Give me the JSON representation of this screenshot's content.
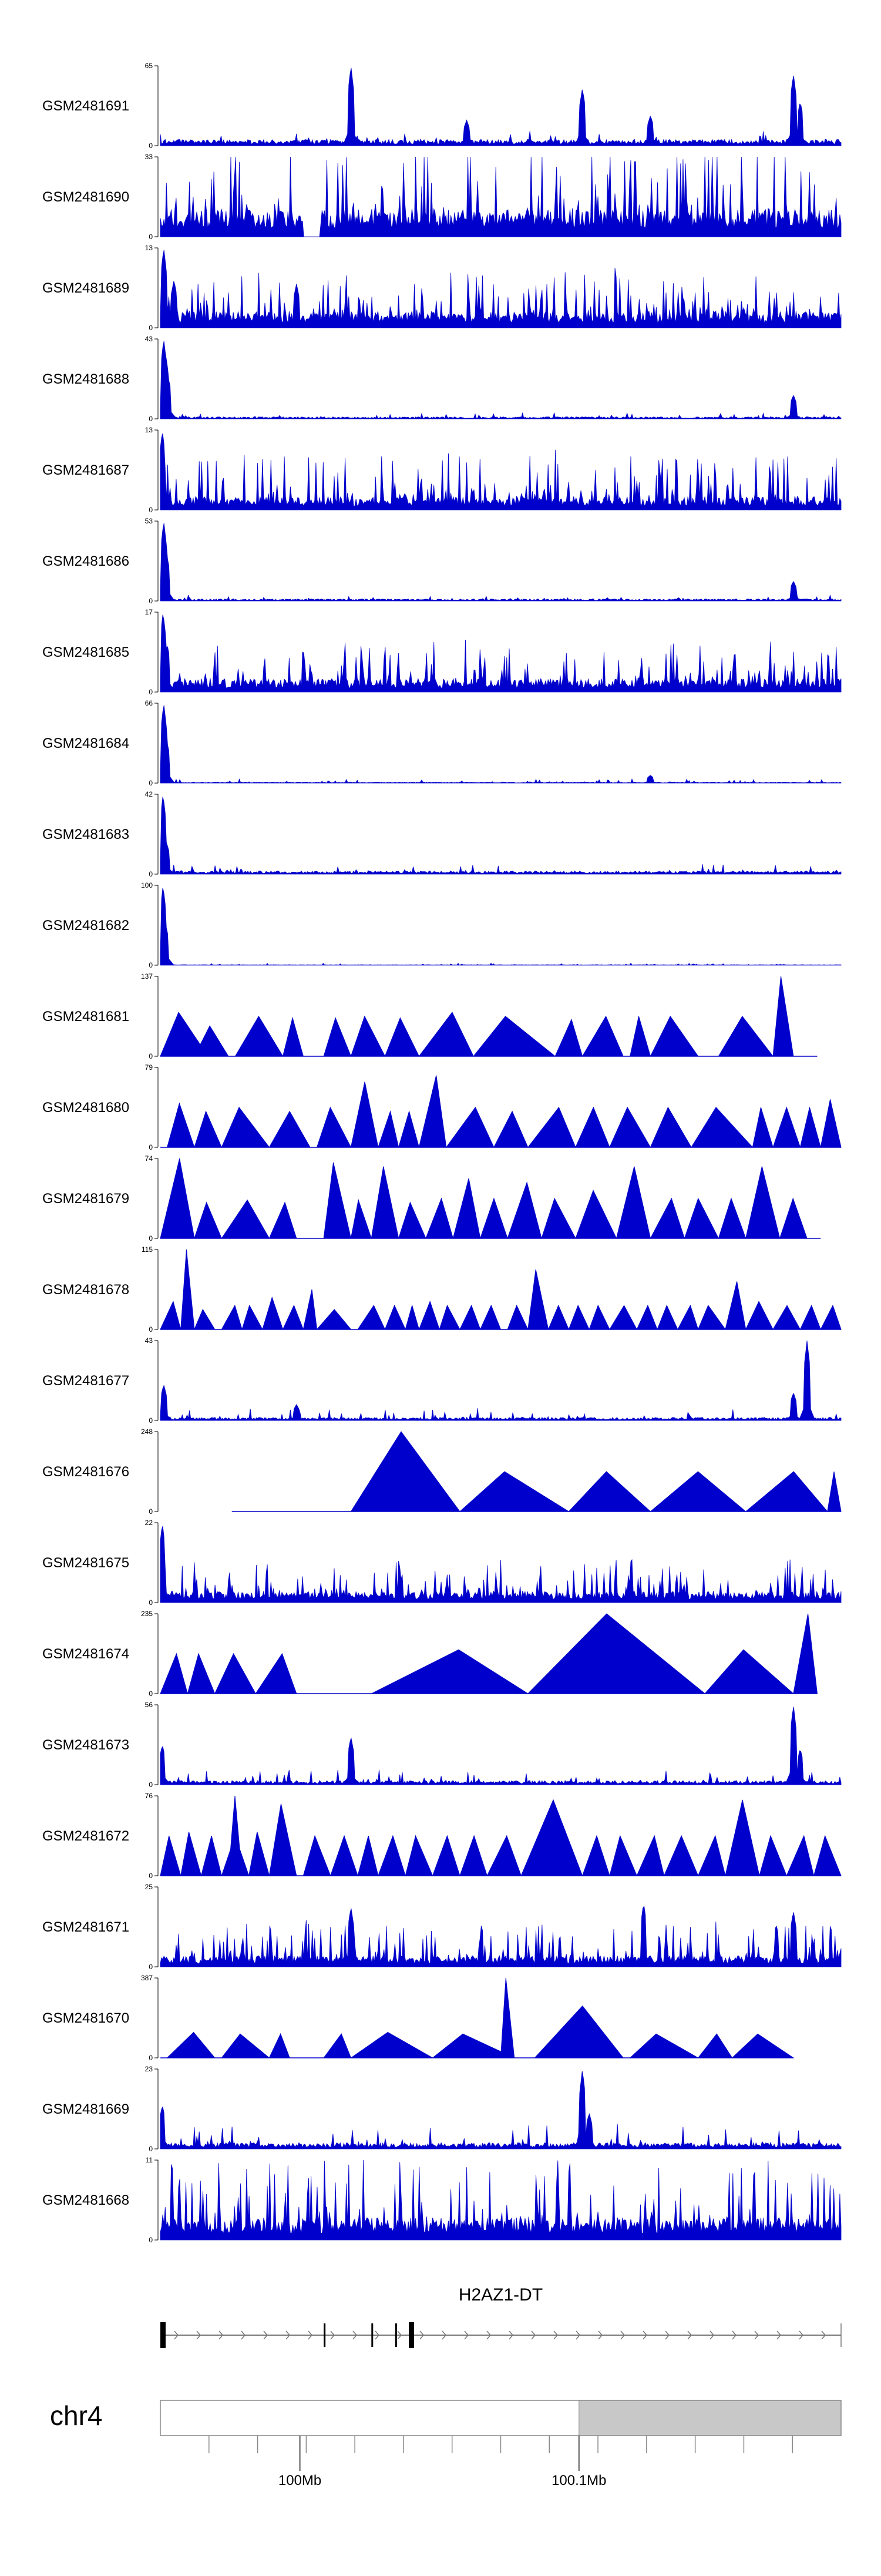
{
  "chart_data": {
    "type": "area",
    "title": "",
    "colors": {
      "signal": "#0000cc",
      "axis": "#000000",
      "ideogram_fill": "#c8c8c8"
    },
    "tracks": [
      {
        "name": "GSM2481691",
        "ymax": 65,
        "ymin": 0,
        "style": "spiky",
        "seed": 11,
        "baseline": 0.06,
        "noise": 0.12,
        "spikes": [
          [
            0.28,
            1.0
          ],
          [
            0.45,
            0.32
          ],
          [
            0.62,
            0.72
          ],
          [
            0.72,
            0.38
          ],
          [
            0.93,
            0.9
          ],
          [
            0.94,
            0.55
          ]
        ]
      },
      {
        "name": "GSM2481690",
        "ymax": 33,
        "ymin": 0,
        "style": "dense",
        "seed": 12,
        "baseline": 0.25,
        "noise": 0.9,
        "gaps": [
          [
            0.21,
            0.235
          ]
        ],
        "spikes": []
      },
      {
        "name": "GSM2481689",
        "ymax": 13,
        "ymin": 0,
        "style": "dense",
        "seed": 13,
        "baseline": 0.15,
        "noise": 0.55,
        "gaps": [],
        "spikes": [
          [
            0.005,
            1.0
          ],
          [
            0.02,
            0.6
          ],
          [
            0.2,
            0.55
          ]
        ]
      },
      {
        "name": "GSM2481688",
        "ymax": 43,
        "ymin": 0,
        "style": "spiky",
        "seed": 14,
        "baseline": 0.02,
        "noise": 0.06,
        "spikes": [
          [
            0.005,
            1.0
          ],
          [
            0.008,
            0.8
          ],
          [
            0.012,
            0.5
          ],
          [
            0.93,
            0.3
          ]
        ]
      },
      {
        "name": "GSM2481687",
        "ymax": 13,
        "ymin": 0,
        "style": "dense",
        "seed": 15,
        "baseline": 0.12,
        "noise": 0.6,
        "gaps": [],
        "spikes": [
          [
            0.003,
            1.0
          ]
        ]
      },
      {
        "name": "GSM2481686",
        "ymax": 53,
        "ymin": 0,
        "style": "spiky",
        "seed": 16,
        "baseline": 0.02,
        "noise": 0.05,
        "spikes": [
          [
            0.005,
            1.0
          ],
          [
            0.009,
            0.6
          ],
          [
            0.93,
            0.25
          ]
        ]
      },
      {
        "name": "GSM2481685",
        "ymax": 17,
        "ymin": 0,
        "style": "dense",
        "seed": 17,
        "baseline": 0.12,
        "noise": 0.5,
        "gaps": [],
        "spikes": [
          [
            0.004,
            1.0
          ],
          [
            0.01,
            0.6
          ]
        ]
      },
      {
        "name": "GSM2481684",
        "ymax": 66,
        "ymin": 0,
        "style": "spiky",
        "seed": 18,
        "baseline": 0.01,
        "noise": 0.04,
        "spikes": [
          [
            0.005,
            1.0
          ],
          [
            0.009,
            0.55
          ],
          [
            0.72,
            0.1
          ]
        ]
      },
      {
        "name": "GSM2481683",
        "ymax": 42,
        "ymin": 0,
        "style": "spiky",
        "seed": 19,
        "baseline": 0.03,
        "noise": 0.1,
        "spikes": [
          [
            0.004,
            1.0
          ],
          [
            0.009,
            0.4
          ]
        ]
      },
      {
        "name": "GSM2481682",
        "ymax": 100,
        "ymin": 0,
        "style": "spiky",
        "seed": 20,
        "baseline": 0.005,
        "noise": 0.02,
        "spikes": [
          [
            0.004,
            1.0
          ],
          [
            0.008,
            0.5
          ]
        ]
      },
      {
        "name": "GSM2481681",
        "ymax": 137,
        "ymin": 0,
        "style": "peaks",
        "seed": 21,
        "end": 0.965,
        "peaks": [
          [
            0.0,
            0.07,
            0.55
          ],
          [
            0.05,
            0.1,
            0.38
          ],
          [
            0.11,
            0.18,
            0.5
          ],
          [
            0.18,
            0.21,
            0.48
          ],
          [
            0.24,
            0.28,
            0.48
          ],
          [
            0.28,
            0.33,
            0.5
          ],
          [
            0.33,
            0.38,
            0.48
          ],
          [
            0.38,
            0.46,
            0.55
          ],
          [
            0.46,
            0.58,
            0.5
          ],
          [
            0.58,
            0.62,
            0.46
          ],
          [
            0.62,
            0.68,
            0.5
          ],
          [
            0.69,
            0.72,
            0.5
          ],
          [
            0.72,
            0.79,
            0.5
          ],
          [
            0.82,
            0.9,
            0.5
          ],
          [
            0.9,
            0.93,
            1.0
          ]
        ]
      },
      {
        "name": "GSM2481680",
        "ymax": 79,
        "ymin": 0,
        "style": "peaks",
        "seed": 22,
        "end": 1.0,
        "peaks": [
          [
            0.01,
            0.05,
            0.55
          ],
          [
            0.05,
            0.09,
            0.45
          ],
          [
            0.09,
            0.16,
            0.5
          ],
          [
            0.16,
            0.22,
            0.45
          ],
          [
            0.23,
            0.28,
            0.5
          ],
          [
            0.28,
            0.32,
            0.82
          ],
          [
            0.32,
            0.35,
            0.45
          ],
          [
            0.35,
            0.38,
            0.45
          ],
          [
            0.38,
            0.42,
            0.9
          ],
          [
            0.42,
            0.49,
            0.5
          ],
          [
            0.49,
            0.54,
            0.45
          ],
          [
            0.54,
            0.61,
            0.5
          ],
          [
            0.61,
            0.66,
            0.5
          ],
          [
            0.66,
            0.72,
            0.5
          ],
          [
            0.72,
            0.78,
            0.5
          ],
          [
            0.78,
            0.87,
            0.5
          ],
          [
            0.87,
            0.9,
            0.5
          ],
          [
            0.9,
            0.94,
            0.5
          ],
          [
            0.94,
            0.97,
            0.5
          ],
          [
            0.97,
            1.0,
            0.6
          ]
        ]
      },
      {
        "name": "GSM2481679",
        "ymax": 74,
        "ymin": 0,
        "style": "peaks",
        "seed": 23,
        "end": 0.97,
        "peaks": [
          [
            0.0,
            0.05,
            1.0
          ],
          [
            0.05,
            0.09,
            0.45
          ],
          [
            0.09,
            0.16,
            0.48
          ],
          [
            0.16,
            0.2,
            0.45
          ],
          [
            0.24,
            0.28,
            0.95
          ],
          [
            0.28,
            0.31,
            0.48
          ],
          [
            0.31,
            0.35,
            0.9
          ],
          [
            0.35,
            0.39,
            0.45
          ],
          [
            0.39,
            0.43,
            0.5
          ],
          [
            0.43,
            0.47,
            0.75
          ],
          [
            0.47,
            0.51,
            0.5
          ],
          [
            0.51,
            0.56,
            0.7
          ],
          [
            0.56,
            0.61,
            0.5
          ],
          [
            0.61,
            0.67,
            0.6
          ],
          [
            0.67,
            0.72,
            0.9
          ],
          [
            0.72,
            0.77,
            0.5
          ],
          [
            0.77,
            0.82,
            0.5
          ],
          [
            0.82,
            0.86,
            0.5
          ],
          [
            0.86,
            0.91,
            0.9
          ],
          [
            0.91,
            0.95,
            0.5
          ]
        ]
      },
      {
        "name": "GSM2481678",
        "ymax": 115,
        "ymin": 0,
        "style": "peaks",
        "seed": 24,
        "end": 1.0,
        "peaks": [
          [
            0.0,
            0.03,
            0.35
          ],
          [
            0.03,
            0.05,
            1.0
          ],
          [
            0.05,
            0.08,
            0.25
          ],
          [
            0.09,
            0.12,
            0.3
          ],
          [
            0.12,
            0.15,
            0.3
          ],
          [
            0.15,
            0.18,
            0.4
          ],
          [
            0.18,
            0.21,
            0.3
          ],
          [
            0.21,
            0.23,
            0.5
          ],
          [
            0.23,
            0.28,
            0.25
          ],
          [
            0.29,
            0.33,
            0.3
          ],
          [
            0.33,
            0.36,
            0.3
          ],
          [
            0.36,
            0.38,
            0.3
          ],
          [
            0.38,
            0.41,
            0.35
          ],
          [
            0.41,
            0.44,
            0.3
          ],
          [
            0.44,
            0.47,
            0.3
          ],
          [
            0.47,
            0.5,
            0.3
          ],
          [
            0.51,
            0.54,
            0.3
          ],
          [
            0.54,
            0.57,
            0.75
          ],
          [
            0.57,
            0.6,
            0.3
          ],
          [
            0.6,
            0.63,
            0.3
          ],
          [
            0.63,
            0.66,
            0.3
          ],
          [
            0.66,
            0.7,
            0.3
          ],
          [
            0.7,
            0.73,
            0.3
          ],
          [
            0.73,
            0.76,
            0.3
          ],
          [
            0.76,
            0.79,
            0.3
          ],
          [
            0.79,
            0.83,
            0.3
          ],
          [
            0.83,
            0.86,
            0.6
          ],
          [
            0.86,
            0.9,
            0.35
          ],
          [
            0.9,
            0.94,
            0.3
          ],
          [
            0.94,
            0.97,
            0.3
          ],
          [
            0.97,
            1.0,
            0.3
          ]
        ]
      },
      {
        "name": "GSM2481677",
        "ymax": 43,
        "ymin": 0,
        "style": "spiky",
        "seed": 25,
        "baseline": 0.03,
        "noise": 0.12,
        "spikes": [
          [
            0.005,
            0.45
          ],
          [
            0.2,
            0.2
          ],
          [
            0.93,
            0.35
          ],
          [
            0.95,
            1.0
          ]
        ]
      },
      {
        "name": "GSM2481676",
        "ymax": 248,
        "ymin": 0,
        "style": "peaks",
        "seed": 26,
        "end": 1.0,
        "flatFrom": 0.105,
        "peaks": [
          [
            0.28,
            0.44,
            1.0
          ],
          [
            0.44,
            0.6,
            0.5
          ],
          [
            0.6,
            0.72,
            0.5
          ],
          [
            0.72,
            0.86,
            0.5
          ],
          [
            0.86,
            0.98,
            0.5
          ],
          [
            0.98,
            1.0,
            0.5
          ]
        ]
      },
      {
        "name": "GSM2481675",
        "ymax": 22,
        "ymin": 0,
        "style": "dense",
        "seed": 27,
        "baseline": 0.1,
        "noise": 0.45,
        "gaps": [],
        "spikes": [
          [
            0.003,
            1.0
          ]
        ]
      },
      {
        "name": "GSM2481674",
        "ymax": 235,
        "ymin": 0,
        "style": "peaks",
        "seed": 28,
        "end": 0.965,
        "peaks": [
          [
            0.0,
            0.04,
            0.5
          ],
          [
            0.04,
            0.08,
            0.5
          ],
          [
            0.08,
            0.14,
            0.5
          ],
          [
            0.14,
            0.2,
            0.5
          ],
          [
            0.31,
            0.54,
            0.55
          ],
          [
            0.54,
            0.8,
            1.0
          ],
          [
            0.8,
            0.93,
            0.55
          ],
          [
            0.93,
            0.965,
            1.0
          ]
        ]
      },
      {
        "name": "GSM2481673",
        "ymax": 56,
        "ymin": 0,
        "style": "spiky",
        "seed": 29,
        "baseline": 0.04,
        "noise": 0.15,
        "spikes": [
          [
            0.003,
            0.5
          ],
          [
            0.28,
            0.6
          ],
          [
            0.93,
            1.0
          ],
          [
            0.94,
            0.45
          ]
        ]
      },
      {
        "name": "GSM2481672",
        "ymax": 76,
        "ymin": 0,
        "style": "peaks",
        "seed": 30,
        "end": 1.0,
        "peaks": [
          [
            0.0,
            0.03,
            0.5
          ],
          [
            0.03,
            0.06,
            0.55
          ],
          [
            0.06,
            0.09,
            0.5
          ],
          [
            0.09,
            0.13,
            0.5
          ],
          [
            0.1,
            0.12,
            1.0
          ],
          [
            0.13,
            0.16,
            0.55
          ],
          [
            0.16,
            0.2,
            0.9
          ],
          [
            0.21,
            0.25,
            0.5
          ],
          [
            0.25,
            0.29,
            0.5
          ],
          [
            0.29,
            0.32,
            0.5
          ],
          [
            0.32,
            0.36,
            0.5
          ],
          [
            0.36,
            0.4,
            0.5
          ],
          [
            0.4,
            0.44,
            0.5
          ],
          [
            0.44,
            0.48,
            0.5
          ],
          [
            0.48,
            0.53,
            0.5
          ],
          [
            0.53,
            0.62,
            0.95
          ],
          [
            0.62,
            0.66,
            0.5
          ],
          [
            0.66,
            0.7,
            0.5
          ],
          [
            0.7,
            0.74,
            0.5
          ],
          [
            0.74,
            0.79,
            0.5
          ],
          [
            0.79,
            0.83,
            0.5
          ],
          [
            0.83,
            0.88,
            0.95
          ],
          [
            0.88,
            0.92,
            0.5
          ],
          [
            0.92,
            0.96,
            0.5
          ],
          [
            0.96,
            1.0,
            0.5
          ]
        ]
      },
      {
        "name": "GSM2481671",
        "ymax": 25,
        "ymin": 0,
        "style": "dense",
        "seed": 31,
        "baseline": 0.1,
        "noise": 0.45,
        "gaps": [],
        "spikes": [
          [
            0.28,
            0.75
          ],
          [
            0.71,
            0.8
          ],
          [
            0.93,
            0.7
          ]
        ]
      },
      {
        "name": "GSM2481670",
        "ymax": 387,
        "ymin": 0,
        "style": "peaks",
        "seed": 32,
        "end": 0.93,
        "peaks": [
          [
            0.01,
            0.08,
            0.32
          ],
          [
            0.09,
            0.16,
            0.3
          ],
          [
            0.16,
            0.19,
            0.3
          ],
          [
            0.24,
            0.28,
            0.3
          ],
          [
            0.28,
            0.4,
            0.32
          ],
          [
            0.4,
            0.52,
            0.3
          ],
          [
            0.5,
            0.52,
            1.0
          ],
          [
            0.55,
            0.68,
            0.65
          ],
          [
            0.69,
            0.79,
            0.3
          ],
          [
            0.79,
            0.84,
            0.3
          ],
          [
            0.84,
            0.93,
            0.3
          ]
        ]
      },
      {
        "name": "GSM2481669",
        "ymax": 23,
        "ymin": 0,
        "style": "spiky",
        "seed": 33,
        "baseline": 0.06,
        "noise": 0.25,
        "spikes": [
          [
            0.003,
            0.55
          ],
          [
            0.62,
            1.0
          ],
          [
            0.63,
            0.45
          ]
        ]
      },
      {
        "name": "GSM2481668",
        "ymax": 11,
        "ymin": 0,
        "style": "dense",
        "seed": 34,
        "baseline": 0.2,
        "noise": 0.85,
        "gaps": [],
        "spikes": []
      }
    ],
    "gene": {
      "name": "H2AZ1-DT",
      "strand": "+",
      "exons": [
        0.0,
        0.24,
        0.31,
        0.345,
        0.365
      ]
    },
    "ideogram": {
      "chromosome": "chr4",
      "selected_start_fraction": 0.615,
      "ticks": [
        {
          "fraction": 0.205,
          "label": "100Mb"
        },
        {
          "fraction": 0.615,
          "label": "100.1Mb"
        }
      ],
      "minor_tick_count": 14
    }
  }
}
